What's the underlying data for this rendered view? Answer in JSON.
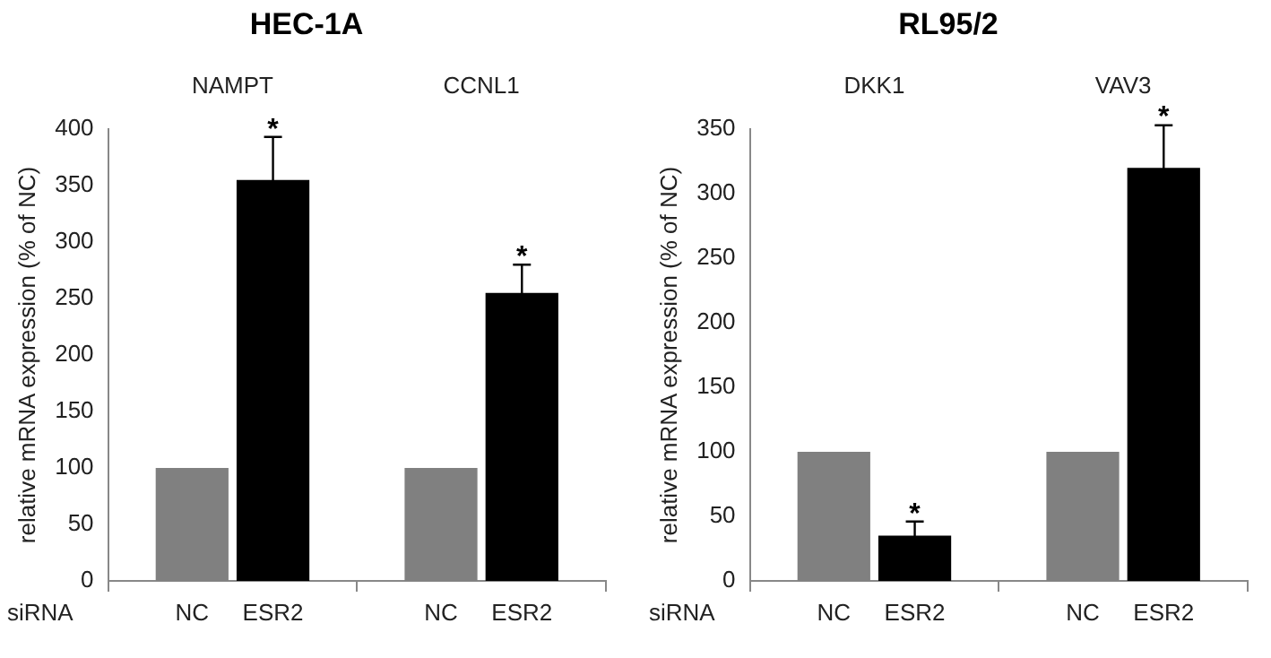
{
  "chart_data": [
    {
      "type": "bar",
      "title": "HEC-1A",
      "xlabel": "siRNA",
      "ylabel": "relative mRNA expression (% of NC)",
      "categories": [
        "NAMPT",
        "CCNL1"
      ],
      "ylim": [
        0,
        400
      ],
      "yticks": [
        0,
        50,
        100,
        150,
        200,
        250,
        300,
        350,
        400
      ],
      "series": [
        {
          "name": "NC",
          "color": "#808080",
          "values": [
            100,
            100
          ]
        },
        {
          "name": "ESR2",
          "color": "#000000",
          "values": [
            355,
            255
          ],
          "errors": [
            38,
            25
          ],
          "value_labels": [
            "*",
            "*"
          ]
        }
      ]
    },
    {
      "type": "bar",
      "title": "RL95/2",
      "xlabel": "siRNA",
      "ylabel": "relative mRNA expression (% of NC)",
      "categories": [
        "DKK1",
        "VAV3"
      ],
      "ylim": [
        0,
        350
      ],
      "yticks": [
        0,
        50,
        100,
        150,
        200,
        250,
        300,
        350
      ],
      "series": [
        {
          "name": "NC",
          "color": "#808080",
          "values": [
            100,
            100
          ]
        },
        {
          "name": "ESR2",
          "color": "#000000",
          "values": [
            35,
            320
          ],
          "errors": [
            11,
            33
          ],
          "value_labels": [
            "*",
            "*"
          ]
        }
      ]
    }
  ]
}
